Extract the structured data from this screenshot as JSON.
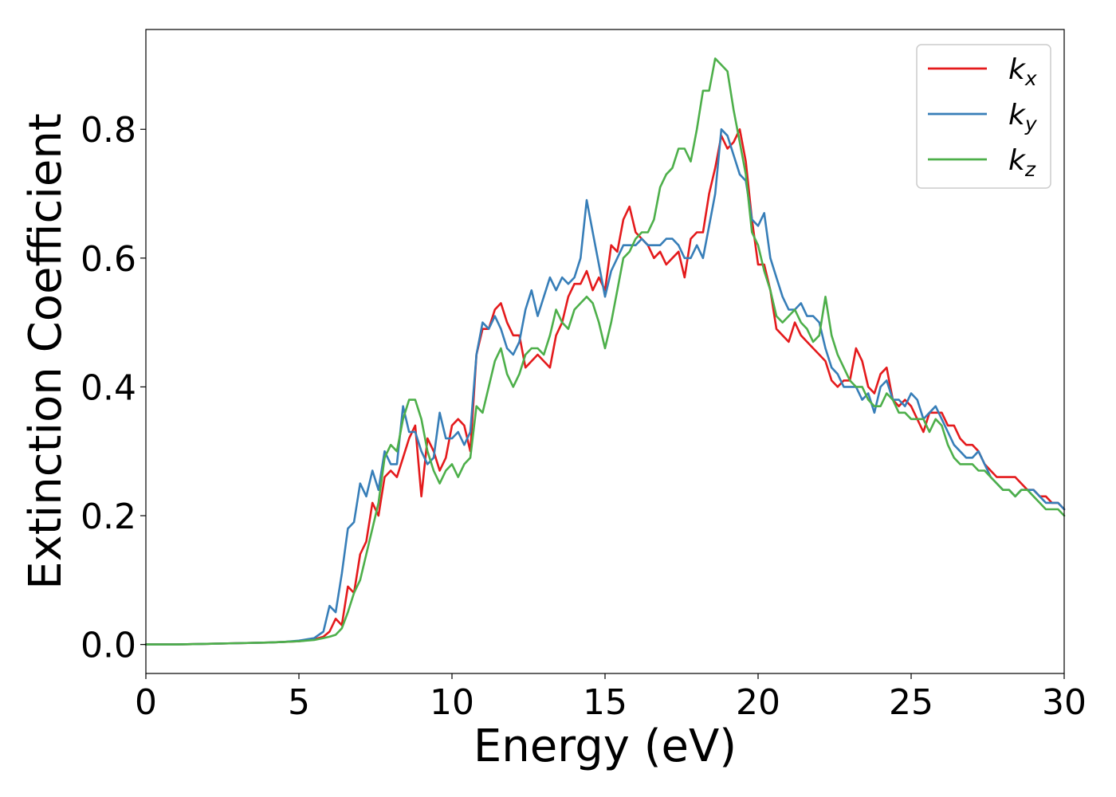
{
  "chart_data": {
    "type": "line",
    "xlabel": "Energy (eV)",
    "ylabel": "Extinction Coefficient",
    "xlim": [
      0,
      30
    ],
    "ylim": [
      -0.045,
      0.955
    ],
    "xticks": [
      0,
      5,
      10,
      15,
      20,
      25,
      30
    ],
    "xtick_labels": [
      "0",
      "5",
      "10",
      "15",
      "20",
      "25",
      "30"
    ],
    "yticks": [
      0.0,
      0.2,
      0.4,
      0.6,
      0.8
    ],
    "ytick_labels": [
      "0.0",
      "0.2",
      "0.4",
      "0.6",
      "0.8"
    ],
    "grid": false,
    "legend_position": "top-right",
    "series": [
      {
        "name": "k_x",
        "label_base": "k",
        "label_sub": "x",
        "color": "#e41a1c",
        "x": [
          0,
          1,
          2,
          3,
          4,
          4.5,
          5,
          5.5,
          5.8,
          6.0,
          6.2,
          6.4,
          6.6,
          6.8,
          7.0,
          7.2,
          7.4,
          7.6,
          7.8,
          8.0,
          8.2,
          8.4,
          8.6,
          8.8,
          9.0,
          9.2,
          9.4,
          9.6,
          9.8,
          10.0,
          10.2,
          10.4,
          10.6,
          10.8,
          11.0,
          11.2,
          11.4,
          11.6,
          11.8,
          12.0,
          12.2,
          12.4,
          12.6,
          12.8,
          13.0,
          13.2,
          13.4,
          13.6,
          13.8,
          14.0,
          14.2,
          14.4,
          14.6,
          14.8,
          15.0,
          15.2,
          15.4,
          15.6,
          15.8,
          16.0,
          16.2,
          16.4,
          16.6,
          16.8,
          17.0,
          17.2,
          17.4,
          17.6,
          17.8,
          18.0,
          18.2,
          18.4,
          18.6,
          18.8,
          19.0,
          19.2,
          19.4,
          19.6,
          19.8,
          20.0,
          20.2,
          20.4,
          20.6,
          20.8,
          21.0,
          21.2,
          21.4,
          21.6,
          21.8,
          22.0,
          22.2,
          22.4,
          22.6,
          22.8,
          23.0,
          23.2,
          23.4,
          23.6,
          23.8,
          24.0,
          24.2,
          24.4,
          24.6,
          24.8,
          25.0,
          25.2,
          25.4,
          25.6,
          25.8,
          26.0,
          26.2,
          26.4,
          26.6,
          26.8,
          27.0,
          27.2,
          27.4,
          27.6,
          27.8,
          28.0,
          28.2,
          28.4,
          28.6,
          28.8,
          29.0,
          29.2,
          29.4,
          29.6,
          29.8,
          30.0
        ],
        "y": [
          0.0,
          0.0,
          0.001,
          0.002,
          0.003,
          0.004,
          0.005,
          0.008,
          0.012,
          0.02,
          0.04,
          0.03,
          0.09,
          0.08,
          0.14,
          0.16,
          0.22,
          0.2,
          0.26,
          0.27,
          0.26,
          0.29,
          0.32,
          0.34,
          0.23,
          0.32,
          0.3,
          0.27,
          0.29,
          0.34,
          0.35,
          0.34,
          0.3,
          0.45,
          0.49,
          0.49,
          0.52,
          0.53,
          0.5,
          0.48,
          0.48,
          0.43,
          0.44,
          0.45,
          0.44,
          0.43,
          0.48,
          0.5,
          0.54,
          0.56,
          0.56,
          0.58,
          0.55,
          0.57,
          0.55,
          0.62,
          0.61,
          0.66,
          0.68,
          0.64,
          0.63,
          0.62,
          0.6,
          0.61,
          0.59,
          0.6,
          0.61,
          0.57,
          0.63,
          0.64,
          0.64,
          0.7,
          0.74,
          0.79,
          0.77,
          0.78,
          0.8,
          0.75,
          0.66,
          0.59,
          0.59,
          0.55,
          0.49,
          0.48,
          0.47,
          0.5,
          0.48,
          0.47,
          0.46,
          0.45,
          0.44,
          0.41,
          0.4,
          0.41,
          0.41,
          0.46,
          0.44,
          0.4,
          0.39,
          0.42,
          0.43,
          0.38,
          0.37,
          0.38,
          0.37,
          0.35,
          0.33,
          0.36,
          0.36,
          0.36,
          0.34,
          0.34,
          0.32,
          0.31,
          0.31,
          0.3,
          0.28,
          0.27,
          0.26,
          0.26,
          0.26,
          0.26,
          0.25,
          0.24,
          0.24,
          0.23,
          0.23,
          0.22,
          0.22,
          0.21
        ]
      },
      {
        "name": "k_y",
        "label_base": "k",
        "label_sub": "y",
        "color": "#377eb8",
        "x": [
          0,
          1,
          2,
          3,
          4,
          4.5,
          5,
          5.5,
          5.8,
          6.0,
          6.2,
          6.4,
          6.6,
          6.8,
          7.0,
          7.2,
          7.4,
          7.6,
          7.8,
          8.0,
          8.2,
          8.4,
          8.6,
          8.8,
          9.0,
          9.2,
          9.4,
          9.6,
          9.8,
          10.0,
          10.2,
          10.4,
          10.6,
          10.8,
          11.0,
          11.2,
          11.4,
          11.6,
          11.8,
          12.0,
          12.2,
          12.4,
          12.6,
          12.8,
          13.0,
          13.2,
          13.4,
          13.6,
          13.8,
          14.0,
          14.2,
          14.4,
          14.6,
          14.8,
          15.0,
          15.2,
          15.4,
          15.6,
          15.8,
          16.0,
          16.2,
          16.4,
          16.6,
          16.8,
          17.0,
          17.2,
          17.4,
          17.6,
          17.8,
          18.0,
          18.2,
          18.4,
          18.6,
          18.8,
          19.0,
          19.2,
          19.4,
          19.6,
          19.8,
          20.0,
          20.2,
          20.4,
          20.6,
          20.8,
          21.0,
          21.2,
          21.4,
          21.6,
          21.8,
          22.0,
          22.2,
          22.4,
          22.6,
          22.8,
          23.0,
          23.2,
          23.4,
          23.6,
          23.8,
          24.0,
          24.2,
          24.4,
          24.6,
          24.8,
          25.0,
          25.2,
          25.4,
          25.6,
          25.8,
          26.0,
          26.2,
          26.4,
          26.6,
          26.8,
          27.0,
          27.2,
          27.4,
          27.6,
          27.8,
          28.0,
          28.2,
          28.4,
          28.6,
          28.8,
          29.0,
          29.2,
          29.4,
          29.6,
          29.8,
          30.0
        ],
        "y": [
          0.0,
          0.0,
          0.001,
          0.002,
          0.003,
          0.004,
          0.006,
          0.01,
          0.02,
          0.06,
          0.05,
          0.11,
          0.18,
          0.19,
          0.25,
          0.23,
          0.27,
          0.24,
          0.3,
          0.28,
          0.28,
          0.37,
          0.33,
          0.33,
          0.3,
          0.28,
          0.29,
          0.36,
          0.32,
          0.32,
          0.33,
          0.31,
          0.33,
          0.45,
          0.5,
          0.49,
          0.51,
          0.49,
          0.46,
          0.45,
          0.47,
          0.52,
          0.55,
          0.51,
          0.54,
          0.57,
          0.55,
          0.57,
          0.56,
          0.57,
          0.6,
          0.69,
          0.64,
          0.59,
          0.54,
          0.58,
          0.6,
          0.62,
          0.62,
          0.62,
          0.63,
          0.62,
          0.62,
          0.62,
          0.63,
          0.63,
          0.62,
          0.6,
          0.6,
          0.62,
          0.6,
          0.65,
          0.7,
          0.8,
          0.79,
          0.76,
          0.73,
          0.72,
          0.66,
          0.65,
          0.67,
          0.6,
          0.57,
          0.54,
          0.52,
          0.52,
          0.53,
          0.51,
          0.51,
          0.5,
          0.46,
          0.43,
          0.42,
          0.4,
          0.4,
          0.4,
          0.38,
          0.39,
          0.36,
          0.4,
          0.41,
          0.38,
          0.38,
          0.37,
          0.39,
          0.38,
          0.35,
          0.36,
          0.37,
          0.35,
          0.33,
          0.31,
          0.3,
          0.29,
          0.29,
          0.3,
          0.28,
          0.26,
          0.25,
          0.24,
          0.24,
          0.23,
          0.24,
          0.24,
          0.24,
          0.23,
          0.22,
          0.22,
          0.22,
          0.21
        ]
      },
      {
        "name": "k_z",
        "label_base": "k",
        "label_sub": "z",
        "color": "#4daf4a",
        "x": [
          0,
          1,
          2,
          3,
          4,
          4.5,
          5,
          5.5,
          5.8,
          6.0,
          6.2,
          6.4,
          6.6,
          6.8,
          7.0,
          7.2,
          7.4,
          7.6,
          7.8,
          8.0,
          8.2,
          8.4,
          8.6,
          8.8,
          9.0,
          9.2,
          9.4,
          9.6,
          9.8,
          10.0,
          10.2,
          10.4,
          10.6,
          10.8,
          11.0,
          11.2,
          11.4,
          11.6,
          11.8,
          12.0,
          12.2,
          12.4,
          12.6,
          12.8,
          13.0,
          13.2,
          13.4,
          13.6,
          13.8,
          14.0,
          14.2,
          14.4,
          14.6,
          14.8,
          15.0,
          15.2,
          15.4,
          15.6,
          15.8,
          16.0,
          16.2,
          16.4,
          16.6,
          16.8,
          17.0,
          17.2,
          17.4,
          17.6,
          17.8,
          18.0,
          18.2,
          18.4,
          18.6,
          18.8,
          19.0,
          19.2,
          19.4,
          19.6,
          19.8,
          20.0,
          20.2,
          20.4,
          20.6,
          20.8,
          21.0,
          21.2,
          21.4,
          21.6,
          21.8,
          22.0,
          22.2,
          22.4,
          22.6,
          22.8,
          23.0,
          23.2,
          23.4,
          23.6,
          23.8,
          24.0,
          24.2,
          24.4,
          24.6,
          24.8,
          25.0,
          25.2,
          25.4,
          25.6,
          25.8,
          26.0,
          26.2,
          26.4,
          26.6,
          26.8,
          27.0,
          27.2,
          27.4,
          27.6,
          27.8,
          28.0,
          28.2,
          28.4,
          28.6,
          28.8,
          29.0,
          29.2,
          29.4,
          29.6,
          29.8,
          30.0
        ],
        "y": [
          0.0,
          0.0,
          0.001,
          0.002,
          0.003,
          0.004,
          0.005,
          0.007,
          0.01,
          0.012,
          0.015,
          0.025,
          0.05,
          0.08,
          0.1,
          0.14,
          0.18,
          0.22,
          0.29,
          0.31,
          0.3,
          0.35,
          0.38,
          0.38,
          0.35,
          0.3,
          0.27,
          0.25,
          0.27,
          0.28,
          0.26,
          0.28,
          0.29,
          0.37,
          0.36,
          0.4,
          0.44,
          0.46,
          0.42,
          0.4,
          0.42,
          0.45,
          0.46,
          0.46,
          0.45,
          0.48,
          0.52,
          0.5,
          0.49,
          0.52,
          0.53,
          0.54,
          0.53,
          0.5,
          0.46,
          0.5,
          0.55,
          0.6,
          0.61,
          0.63,
          0.64,
          0.64,
          0.66,
          0.71,
          0.73,
          0.74,
          0.77,
          0.77,
          0.75,
          0.8,
          0.86,
          0.86,
          0.91,
          0.9,
          0.89,
          0.83,
          0.78,
          0.73,
          0.64,
          0.62,
          0.58,
          0.55,
          0.51,
          0.5,
          0.51,
          0.52,
          0.5,
          0.49,
          0.47,
          0.48,
          0.54,
          0.48,
          0.45,
          0.43,
          0.41,
          0.4,
          0.4,
          0.38,
          0.37,
          0.37,
          0.39,
          0.38,
          0.36,
          0.36,
          0.35,
          0.35,
          0.35,
          0.33,
          0.35,
          0.34,
          0.31,
          0.29,
          0.28,
          0.28,
          0.28,
          0.27,
          0.27,
          0.26,
          0.25,
          0.24,
          0.24,
          0.23,
          0.24,
          0.24,
          0.23,
          0.22,
          0.21,
          0.21,
          0.21,
          0.2
        ]
      }
    ]
  }
}
